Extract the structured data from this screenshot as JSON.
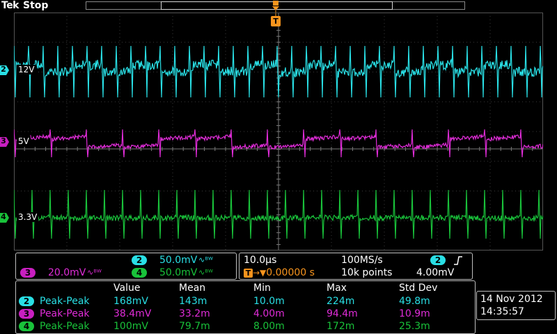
{
  "header": {
    "brand": "Tek",
    "run_state": "Stop"
  },
  "trigger_marker": "T",
  "channels": [
    {
      "id": "2",
      "label": "12V",
      "color": "#29dfe5",
      "scale": "50.0mV"
    },
    {
      "id": "3",
      "label": "5V",
      "color": "#e02cd8",
      "scale": "20.0mV"
    },
    {
      "id": "4",
      "label": "3.3V",
      "color": "#19c23a",
      "scale": "50.0mV"
    }
  ],
  "bandwidth_symbol": "∿ᴮᵂ",
  "timebase": {
    "horizontal_scale": "10.0µs",
    "sample_rate": "100MS/s",
    "trigger_position": "0.00000 s",
    "record_length": "10k points",
    "trigger_source": "2",
    "trigger_slope_icon": "rising-edge-icon",
    "trigger_level": "4.00mV"
  },
  "measurements": {
    "headers": [
      "Value",
      "Mean",
      "Min",
      "Max",
      "Std Dev"
    ],
    "rows": [
      {
        "channel": "2",
        "type": "Peak-Peak",
        "value": "168mV",
        "mean": "143m",
        "min": "10.0m",
        "max": "224m",
        "std_dev": "49.8m"
      },
      {
        "channel": "3",
        "type": "Peak-Peak",
        "value": "38.4mV",
        "mean": "33.2m",
        "min": "4.00m",
        "max": "94.4m",
        "std_dev": "10.9m"
      },
      {
        "channel": "4",
        "type": "Peak-Peak",
        "value": "100mV",
        "mean": "79.7m",
        "min": "8.00m",
        "max": "172m",
        "std_dev": "25.3m"
      }
    ]
  },
  "date": "14 Nov 2012",
  "time": "14:35:57"
}
